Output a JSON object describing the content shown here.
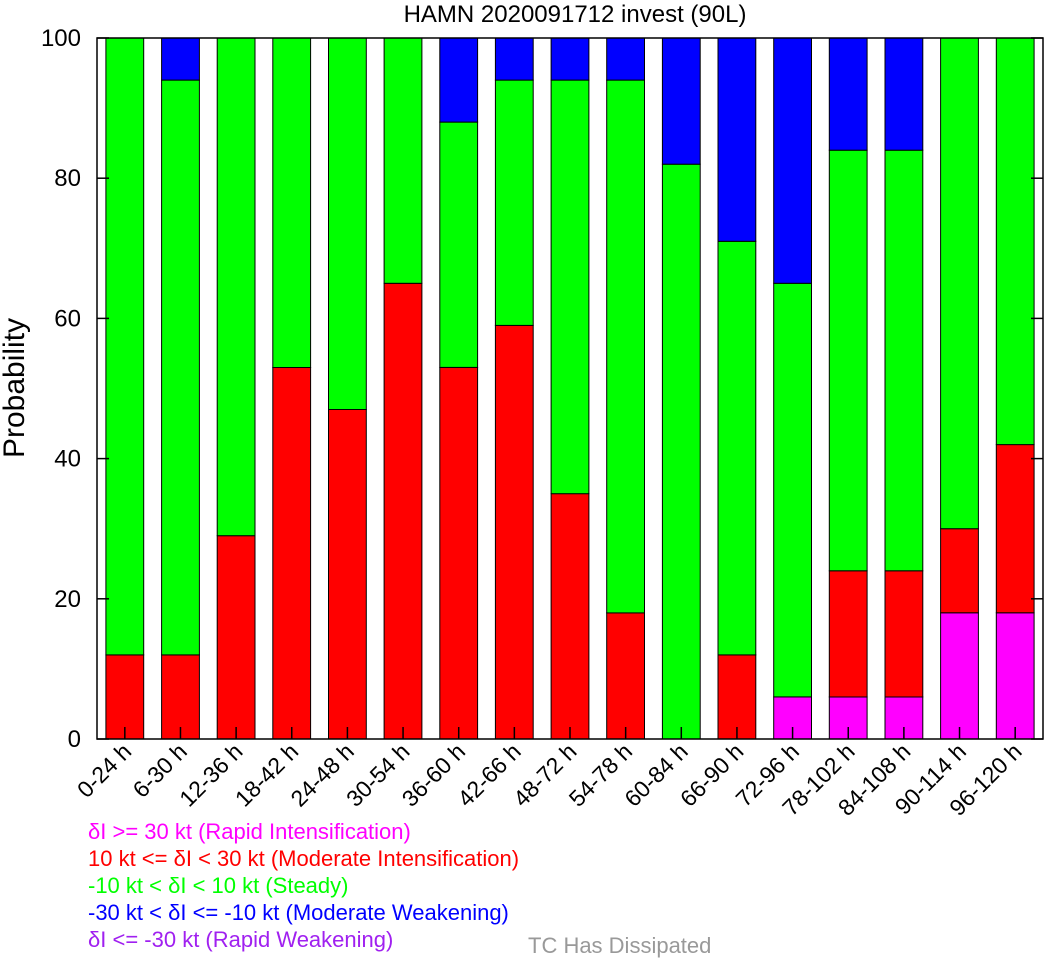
{
  "chart_data": {
    "type": "bar",
    "stacked": true,
    "title": "HAMN 2020091712 invest (90L)",
    "ylabel": "Probability",
    "xlabel": "",
    "ylim": [
      0,
      100
    ],
    "yticks": [
      0,
      20,
      40,
      60,
      80,
      100
    ],
    "grid": false,
    "categories": [
      "0-24 h",
      "6-30 h",
      "12-36 h",
      "18-42 h",
      "24-48 h",
      "30-54 h",
      "36-60 h",
      "42-66 h",
      "48-72 h",
      "54-78 h",
      "60-84 h",
      "66-90 h",
      "72-96 h",
      "78-102 h",
      "84-108 h",
      "90-114 h",
      "96-120 h"
    ],
    "series": [
      {
        "name": "δI >= 30 kt (Rapid Intensification)",
        "color": "#ff00ff",
        "values": [
          0,
          0,
          0,
          0,
          0,
          0,
          0,
          0,
          0,
          0,
          0,
          0,
          6,
          6,
          6,
          18,
          18
        ]
      },
      {
        "name": "10 kt <= δI < 30 kt (Moderate Intensification)",
        "color": "#ff0000",
        "values": [
          12,
          12,
          29,
          53,
          47,
          65,
          53,
          59,
          35,
          18,
          0,
          12,
          0,
          18,
          18,
          12,
          24
        ]
      },
      {
        "name": "-10 kt < δI < 10 kt (Steady)",
        "color": "#00ff00",
        "values": [
          88,
          82,
          71,
          47,
          53,
          35,
          35,
          35,
          59,
          76,
          82,
          59,
          59,
          60,
          60,
          70,
          58
        ]
      },
      {
        "name": "-30 kt < δI <= -10 kt (Moderate Weakening)",
        "color": "#0000ff",
        "values": [
          0,
          6,
          0,
          0,
          0,
          0,
          12,
          6,
          6,
          6,
          18,
          29,
          35,
          16,
          16,
          0,
          0
        ]
      },
      {
        "name": "δI <= -30 kt (Rapid Weakening)",
        "color": "#a020f0",
        "values": [
          0,
          0,
          0,
          0,
          0,
          0,
          0,
          0,
          0,
          0,
          0,
          0,
          0,
          0,
          0,
          0,
          0
        ]
      }
    ],
    "dissipated_label": "TC Has Dissipated",
    "dissipated_color": "#999999"
  }
}
